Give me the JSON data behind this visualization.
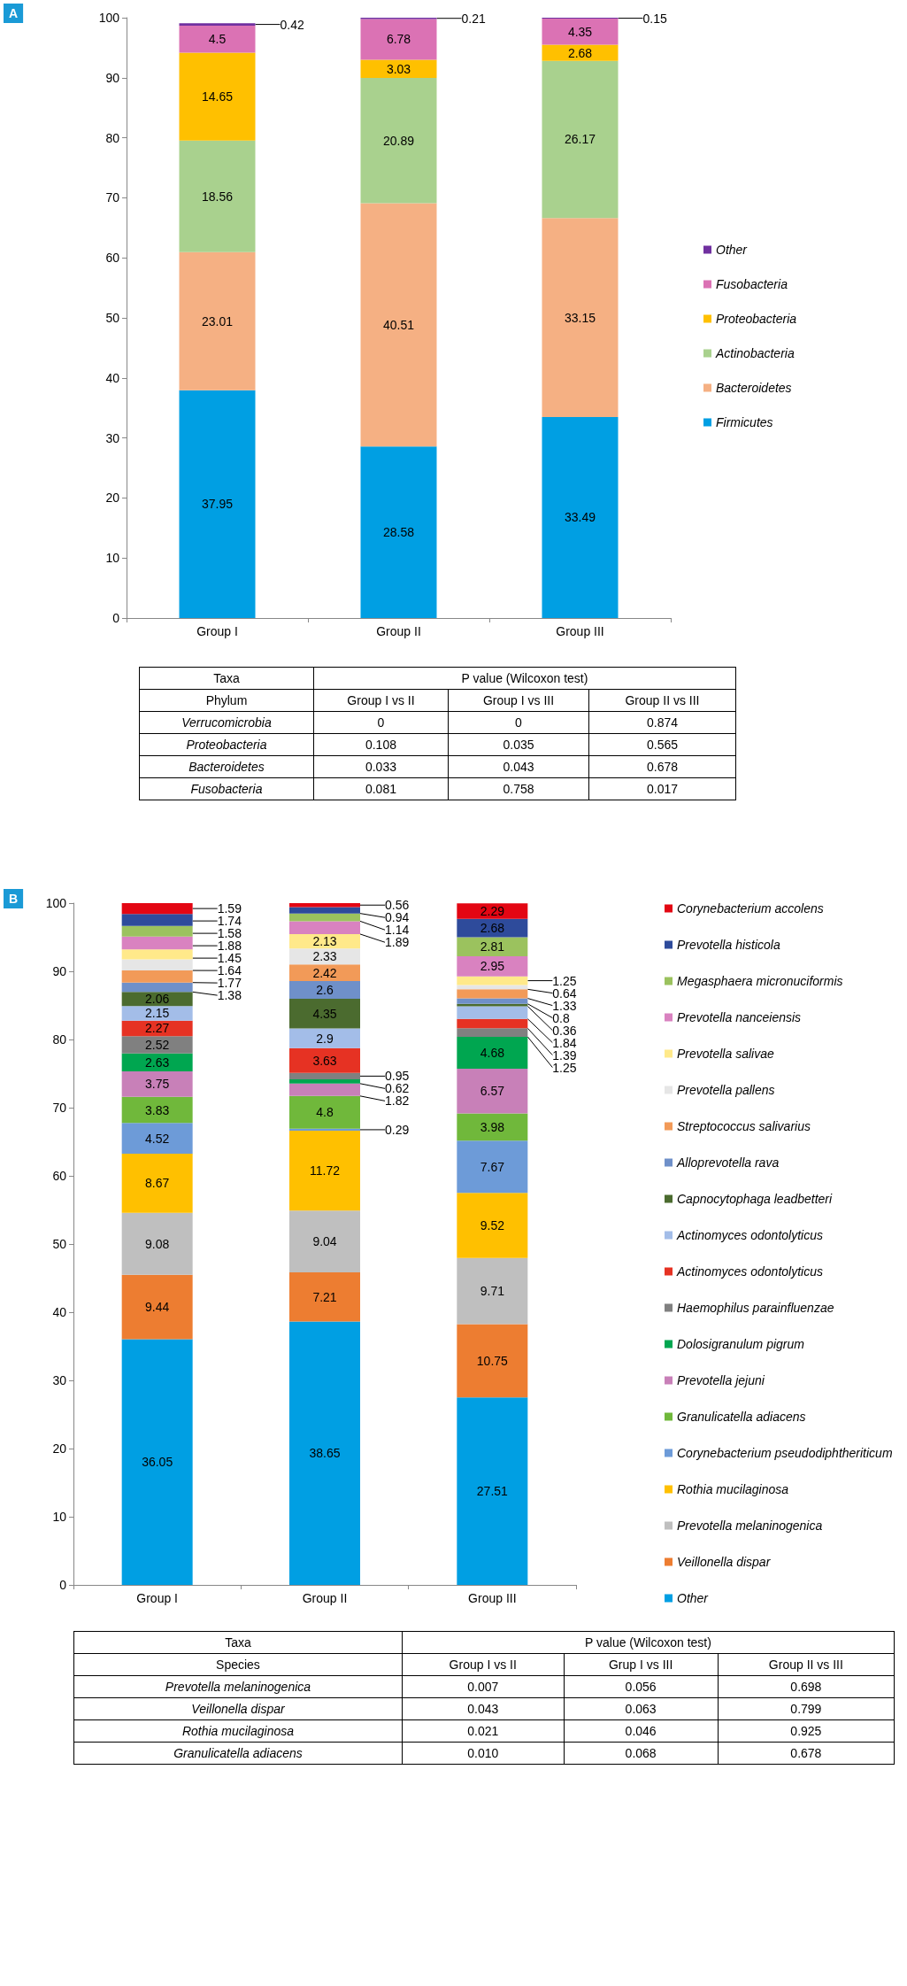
{
  "chart_data": [
    {
      "type": "bar",
      "stacked": true,
      "data_labels": true,
      "legend": "right",
      "grid": false,
      "annotations": [
        "A"
      ],
      "categories": [
        "Group I",
        "Group II",
        "Group III"
      ],
      "ylim": [
        0,
        100
      ],
      "yticks": [
        0,
        10,
        20,
        30,
        40,
        50,
        60,
        70,
        80,
        90,
        100
      ],
      "series": [
        {
          "name": "Firmicutes",
          "color": "#009fe3",
          "values": [
            37.95,
            28.58,
            33.49
          ]
        },
        {
          "name": "Bacteroidetes",
          "color": "#f5b083",
          "values": [
            23.01,
            40.51,
            33.15
          ]
        },
        {
          "name": "Actinobacteria",
          "color": "#a9d18e",
          "values": [
            18.56,
            20.89,
            26.17
          ]
        },
        {
          "name": "Proteobacteria",
          "color": "#ffc000",
          "values": [
            14.65,
            3.03,
            2.68
          ]
        },
        {
          "name": "Fusobacteria",
          "color": "#db72b4",
          "values": [
            4.5,
            6.78,
            4.35
          ]
        },
        {
          "name": "Other",
          "color": "#7030a0",
          "values": [
            0.42,
            0.21,
            0.15
          ]
        }
      ]
    },
    {
      "type": "other",
      "annotations": [
        "Taxa",
        "P value (Wilcoxon test)"
      ],
      "categories": [
        "Phylum",
        "Group I vs II",
        "Group I vs III",
        "Group II vs III"
      ],
      "y_categories": [
        "Verrucomicrobia",
        "Proteobacteria",
        "Bacteroidetes",
        "Fusobacteria"
      ],
      "cell_labels": [
        [
          "0",
          "0",
          "0.874"
        ],
        [
          "0.108",
          "0.035",
          "0.565"
        ],
        [
          "0.033",
          "0.043",
          "0.678"
        ],
        [
          "0.081",
          "0.758",
          "0.017"
        ]
      ]
    },
    {
      "type": "bar",
      "stacked": true,
      "data_labels": true,
      "legend": "right",
      "grid": false,
      "annotations": [
        "B"
      ],
      "categories": [
        "Group I",
        "Group II",
        "Group III"
      ],
      "ylim": [
        0,
        100
      ],
      "yticks": [
        0,
        10,
        20,
        30,
        40,
        50,
        60,
        70,
        80,
        90,
        100
      ],
      "series": [
        {
          "name": "Other",
          "color": "#009fe3",
          "values": [
            36.05,
            38.65,
            27.51
          ]
        },
        {
          "name": "Veillonella dispar",
          "color": "#ed7d31",
          "values": [
            9.44,
            7.21,
            10.75
          ]
        },
        {
          "name": "Prevotella melaninogenica",
          "color": "#bfbfbf",
          "values": [
            9.08,
            9.04,
            9.71
          ]
        },
        {
          "name": "Rothia mucilaginosa",
          "color": "#ffc000",
          "values": [
            8.67,
            11.72,
            9.52
          ]
        },
        {
          "name": "Corynebacterium pseudodiphtheriticum",
          "color": "#6d9bd8",
          "values": [
            4.52,
            0.29,
            7.67
          ]
        },
        {
          "name": "Granulicatella adiacens",
          "color": "#70b83b",
          "values": [
            3.83,
            4.8,
            3.98
          ]
        },
        {
          "name": "Prevotella jejuni",
          "color": "#c880b8",
          "values": [
            3.75,
            1.82,
            6.57
          ]
        },
        {
          "name": "Dolosigranulum pigrum",
          "color": "#00a650",
          "values": [
            2.63,
            0.62,
            4.68
          ]
        },
        {
          "name": "Haemophilus parainfluenzae",
          "color": "#808080",
          "values": [
            2.52,
            0.95,
            1.25
          ]
        },
        {
          "name": "Actinomyces odontolyticus",
          "color": "#e63223",
          "values": [
            2.27,
            3.63,
            1.39
          ]
        },
        {
          "name": "Actinomyces odontolyticus",
          "color": "#a3bde8",
          "values": [
            2.15,
            2.9,
            1.84
          ]
        },
        {
          "name": "Capnocytophaga leadbetteri",
          "color": "#4b6b2f",
          "values": [
            2.06,
            4.35,
            0.36
          ]
        },
        {
          "name": "Alloprevotella rava",
          "color": "#6f90c9",
          "values": [
            1.38,
            2.6,
            0.8
          ]
        },
        {
          "name": "Streptococcus salivarius",
          "color": "#f29a58",
          "values": [
            1.77,
            2.42,
            1.33
          ]
        },
        {
          "name": "Prevotella pallens",
          "color": "#e6e6e6",
          "values": [
            1.64,
            2.33,
            0.64
          ]
        },
        {
          "name": "Prevotella salivae",
          "color": "#ffe98a",
          "values": [
            1.45,
            2.13,
            1.25
          ]
        },
        {
          "name": "Prevotella nanceiensis",
          "color": "#d982c0",
          "values": [
            1.88,
            1.89,
            2.95
          ]
        },
        {
          "name": "Megasphaera micronuciformis",
          "color": "#9bc25e",
          "values": [
            1.58,
            1.14,
            2.81
          ]
        },
        {
          "name": "Prevotella histicola",
          "color": "#2e4b9b",
          "values": [
            1.74,
            0.94,
            2.68
          ]
        },
        {
          "name": "Corynebacterium accolens",
          "color": "#e30613",
          "values": [
            1.59,
            0.56,
            2.29
          ]
        }
      ]
    },
    {
      "type": "other",
      "annotations": [
        "Taxa",
        "P value (Wilcoxon test)"
      ],
      "categories": [
        "Species",
        "Group I vs II",
        "Grup I vs III",
        "Group II vs III"
      ],
      "y_categories": [
        "Prevotella melaninogenica",
        "Veillonella dispar",
        "Rothia mucilaginosa",
        "Granulicatella adiacens"
      ],
      "cell_labels": [
        [
          "0.007",
          "0.056",
          "0.698"
        ],
        [
          "0.043",
          "0.063",
          "0.799"
        ],
        [
          "0.021",
          "0.046",
          "0.925"
        ],
        [
          "0.010",
          "0.068",
          "0.678"
        ]
      ]
    }
  ]
}
